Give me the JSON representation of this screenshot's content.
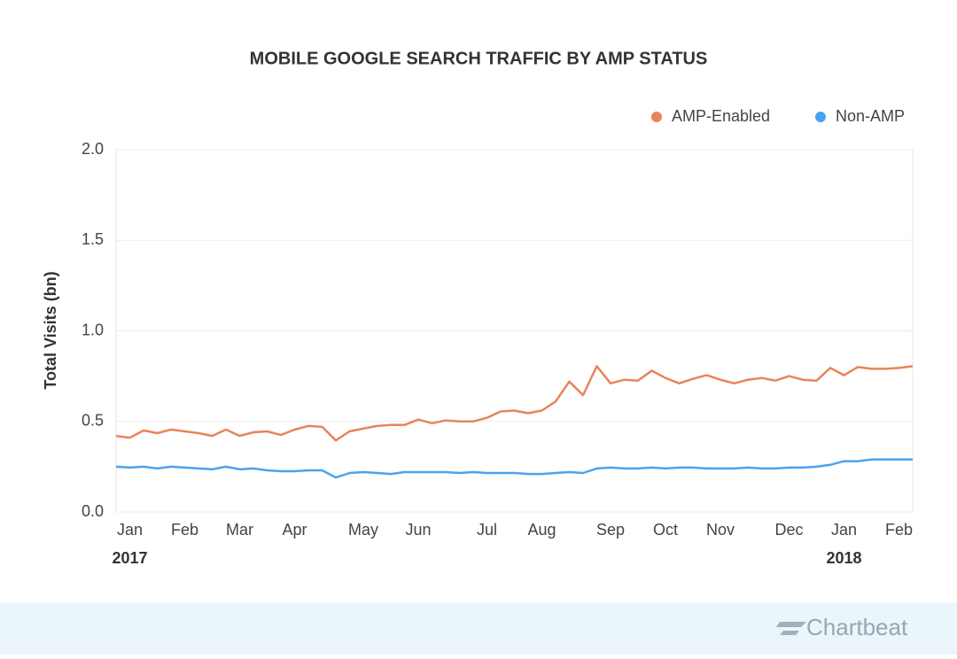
{
  "chart_data": {
    "type": "line",
    "title": "MOBILE GOOGLE SEARCH TRAFFIC BY AMP STATUS",
    "y_label": "Total Visits (bn)",
    "categories": [
      null,
      "Jan",
      null,
      null,
      null,
      "Feb",
      null,
      null,
      null,
      "Mar",
      null,
      null,
      null,
      "Apr",
      null,
      null,
      null,
      null,
      "May",
      null,
      null,
      null,
      "Jun",
      null,
      null,
      null,
      null,
      "Jul",
      null,
      null,
      null,
      "Aug",
      null,
      null,
      null,
      null,
      "Sep",
      null,
      null,
      null,
      "Oct",
      null,
      null,
      null,
      "Nov",
      null,
      null,
      null,
      null,
      "Dec",
      null,
      null,
      null,
      "Jan",
      null,
      null,
      null,
      "Feb",
      null
    ],
    "year_labels": [
      "2017",
      "2018"
    ],
    "series": [
      {
        "name": "AMP-Enabled",
        "color": "#e8845a",
        "values": [
          0.42,
          0.41,
          0.45,
          0.435,
          0.455,
          0.445,
          0.435,
          0.42,
          0.455,
          0.42,
          0.44,
          0.445,
          0.425,
          0.455,
          0.475,
          0.47,
          0.395,
          0.445,
          0.46,
          0.475,
          0.48,
          0.48,
          0.51,
          0.49,
          0.505,
          0.5,
          0.5,
          0.52,
          0.555,
          0.56,
          0.545,
          0.56,
          0.61,
          0.72,
          0.645,
          0.805,
          0.71,
          0.73,
          0.725,
          0.78,
          0.74,
          0.71,
          0.735,
          0.755,
          0.73,
          0.71,
          0.73,
          0.74,
          0.725,
          0.75,
          0.73,
          0.725,
          0.795,
          0.755,
          0.8,
          0.79,
          0.79,
          0.795,
          0.805
        ]
      },
      {
        "name": "Non-AMP",
        "color": "#4aa3ef",
        "values": [
          0.25,
          0.245,
          0.25,
          0.24,
          0.25,
          0.245,
          0.24,
          0.235,
          0.25,
          0.235,
          0.24,
          0.23,
          0.225,
          0.225,
          0.23,
          0.23,
          0.19,
          0.215,
          0.22,
          0.215,
          0.21,
          0.22,
          0.22,
          0.22,
          0.22,
          0.215,
          0.22,
          0.215,
          0.215,
          0.215,
          0.21,
          0.21,
          0.215,
          0.22,
          0.215,
          0.24,
          0.245,
          0.24,
          0.24,
          0.245,
          0.24,
          0.245,
          0.245,
          0.24,
          0.24,
          0.24,
          0.245,
          0.24,
          0.24,
          0.245,
          0.245,
          0.25,
          0.26,
          0.28,
          0.28,
          0.29,
          0.29,
          0.29,
          0.29
        ]
      }
    ],
    "ylim": [
      0,
      2
    ],
    "yticks": [
      {
        "value": 0,
        "label": "0.0"
      },
      0.5,
      {
        "value": 1,
        "label": "1.0"
      },
      1.5,
      {
        "value": 2,
        "label": "2.0"
      }
    ],
    "grid": true,
    "legend": "top-right"
  },
  "footer": {
    "brand": "Chartbeat"
  }
}
